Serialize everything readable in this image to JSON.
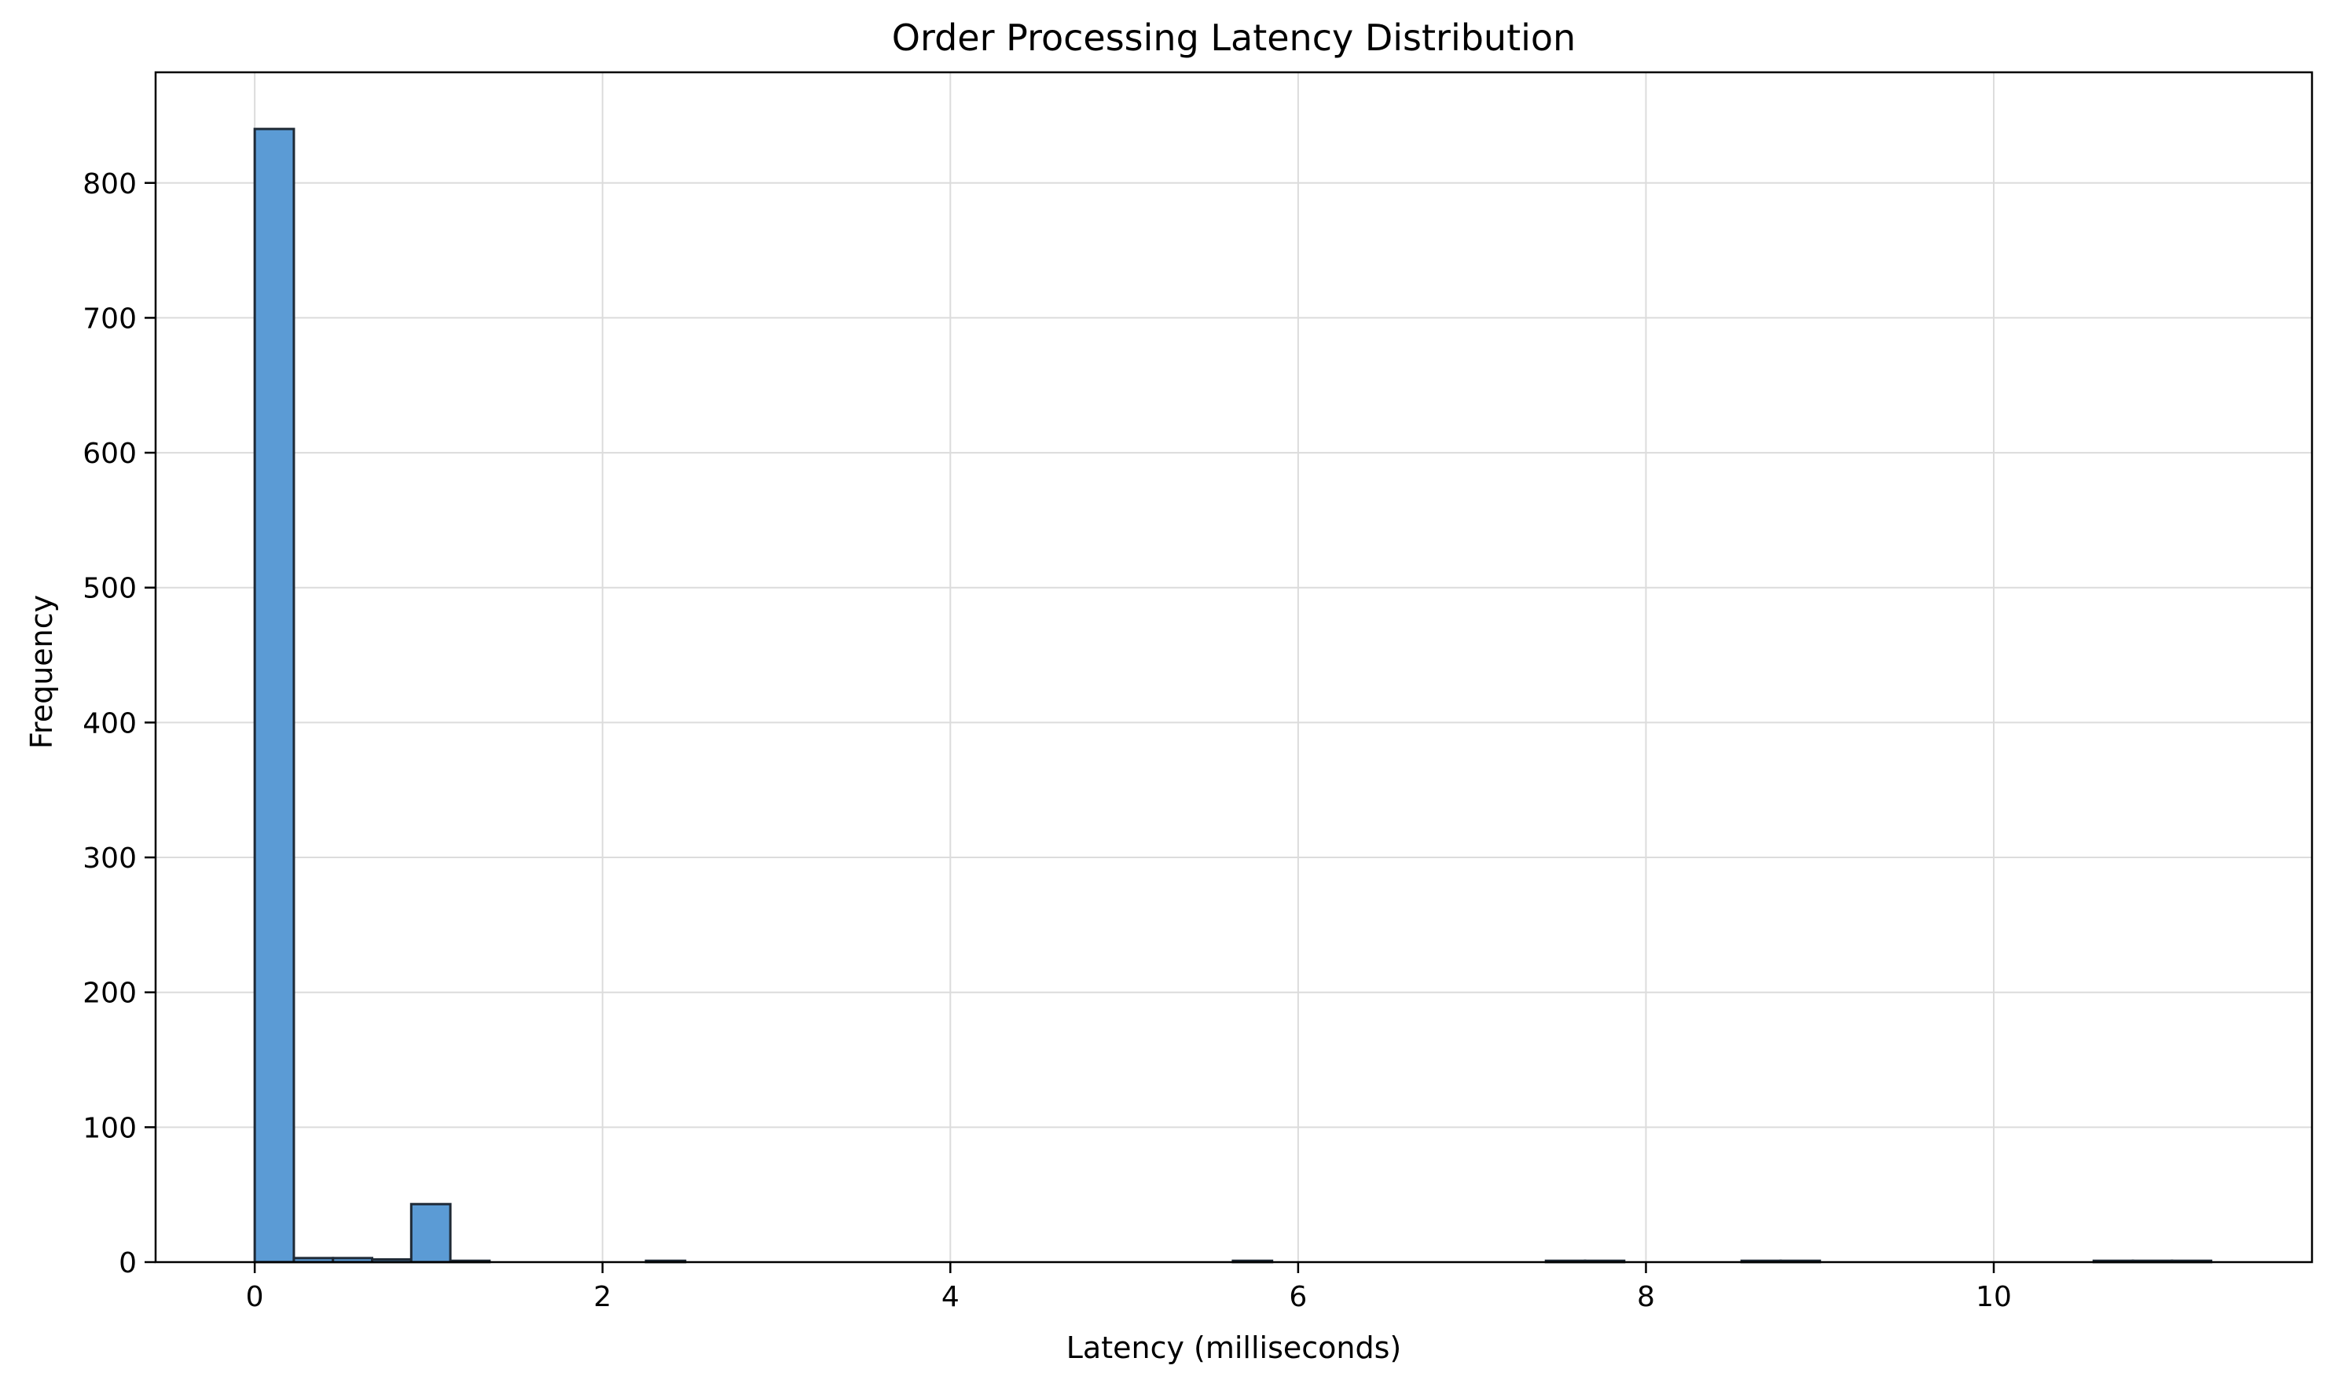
{
  "chart_data": {
    "type": "histogram",
    "title": "Order Processing Latency Distribution",
    "xlabel": "Latency (milliseconds)",
    "ylabel": "Frequency",
    "xlim": [
      -0.57,
      11.83
    ],
    "ylim": [
      0,
      882
    ],
    "xticks": [
      0,
      2,
      4,
      6,
      8,
      10
    ],
    "yticks": [
      0,
      100,
      200,
      300,
      400,
      500,
      600,
      700,
      800
    ],
    "grid": true,
    "bar_color": "#5b9bd5",
    "edge_color": "#1f2a36",
    "bin_width": 0.225,
    "bins": [
      {
        "x0": 0.0,
        "x1": 0.225,
        "count": 840
      },
      {
        "x0": 0.225,
        "x1": 0.45,
        "count": 3
      },
      {
        "x0": 0.45,
        "x1": 0.675,
        "count": 3
      },
      {
        "x0": 0.675,
        "x1": 0.9,
        "count": 2
      },
      {
        "x0": 0.9,
        "x1": 1.125,
        "count": 43
      },
      {
        "x0": 1.125,
        "x1": 1.35,
        "count": 1
      },
      {
        "x0": 2.25,
        "x1": 2.475,
        "count": 1
      },
      {
        "x0": 5.625,
        "x1": 5.85,
        "count": 1
      },
      {
        "x0": 7.425,
        "x1": 7.65,
        "count": 1
      },
      {
        "x0": 7.65,
        "x1": 7.875,
        "count": 1
      },
      {
        "x0": 8.55,
        "x1": 8.775,
        "count": 1
      },
      {
        "x0": 8.775,
        "x1": 9.0,
        "count": 1
      },
      {
        "x0": 10.575,
        "x1": 10.8,
        "count": 1
      },
      {
        "x0": 10.8,
        "x1": 11.025,
        "count": 1
      },
      {
        "x0": 11.025,
        "x1": 11.25,
        "count": 1
      }
    ]
  }
}
